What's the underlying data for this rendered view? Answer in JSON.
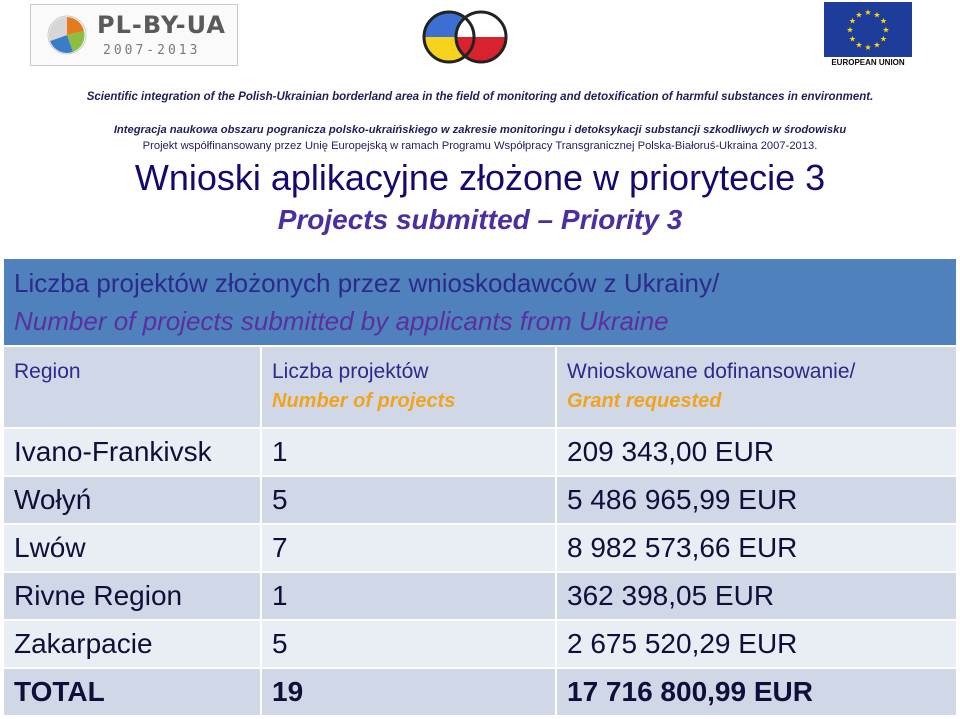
{
  "logos": {
    "left": {
      "name": "PL-BY-UA",
      "years": "2007-2013"
    },
    "eu": {
      "label": "EUROPEAN UNION"
    }
  },
  "header": {
    "scientific_line": "Scientific integration of the Polish-Ukrainian borderland area in the field of monitoring and detoxification of harmful substances in environment.",
    "integration_line": "Integracja naukowa obszaru pogranicza polsko-ukraińskiego w zakresie monitoringu i detoksykacji substancji szkodliwych w środowisku",
    "project_line": "Projekt współfinansowany przez Unię Europejską w ramach Programu Współpracy Transgranicznej Polska-Białoruś-Ukraina 2007-2013.",
    "title": "Wnioski aplikacyjne złożone w priorytecie 3",
    "subtitle": "Projects submitted – Priority 3"
  },
  "table": {
    "banner_pl": "Liczba projektów złożonych przez wnioskodawców z Ukrainy/",
    "banner_en": "Number of projects submitted by applicants from Ukraine",
    "columns": [
      {
        "pl": "Region",
        "en": ""
      },
      {
        "pl": "Liczba projektów",
        "en": "Number of projects"
      },
      {
        "pl": "Wnioskowane dofinansowanie/",
        "en": "Grant requested"
      }
    ],
    "rows": [
      {
        "region": "Ivano-Frankivsk",
        "count": "1",
        "grant": "209 343,00  EUR"
      },
      {
        "region": "Wołyń",
        "count": "5",
        "grant": "5 486 965,99 EUR"
      },
      {
        "region": "Lwów",
        "count": "7",
        "grant": "8 982 573,66 EUR"
      },
      {
        "region": "Rivne Region",
        "count": "1",
        "grant": "362 398,05 EUR"
      },
      {
        "region": "Zakarpacie",
        "count": "5",
        "grant": "2 675 520,29 EUR"
      }
    ],
    "total": {
      "region": "TOTAL",
      "count": "19",
      "grant": "17 716 800,99 EUR"
    }
  },
  "colors": {
    "banner": "#4f81bd",
    "row_dark": "#d0d8e8",
    "row_light": "#e9edf4",
    "accent_orange": "#f0a41e",
    "title": "#120a6e"
  }
}
